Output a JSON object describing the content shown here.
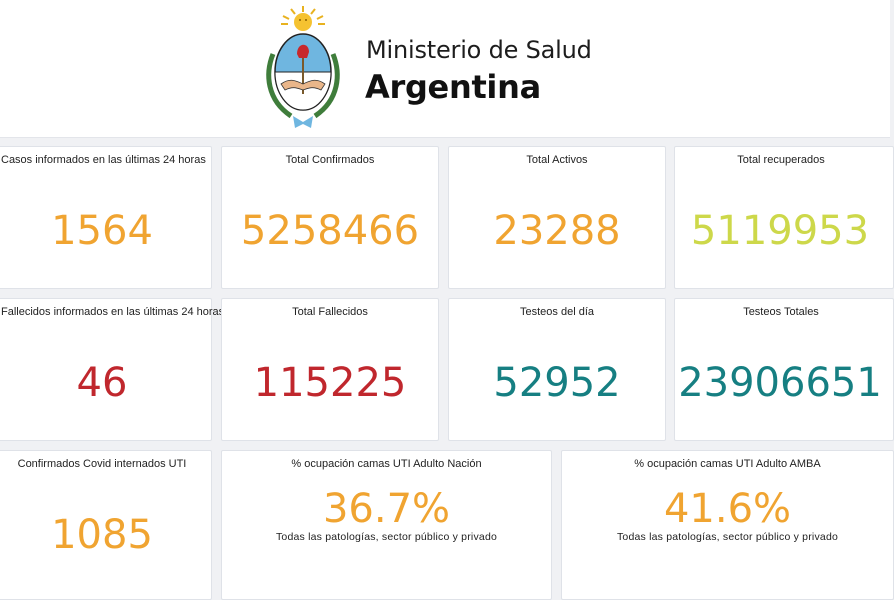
{
  "header": {
    "ministry": "Ministerio de Salud",
    "country": "Argentina",
    "emblem_icon": "argentina-coat-of-arms-icon"
  },
  "colors": {
    "orange": "#f0a431",
    "green": "#cdd84a",
    "red": "#c0272d",
    "teal": "#167f82"
  },
  "cards": [
    {
      "title": "Casos informados en las últimas 24 horas",
      "value": "1564"
    },
    {
      "title": "Total Confirmados",
      "value": "5258466"
    },
    {
      "title": "Total Activos",
      "value": "23288"
    },
    {
      "title": "Total recuperados",
      "value": "5119953"
    },
    {
      "title": "Fallecidos informados en las últimas 24 horas",
      "value": "46"
    },
    {
      "title": "Total Fallecidos",
      "value": "115225"
    },
    {
      "title": "Testeos del día",
      "value": "52952"
    },
    {
      "title": "Testeos Totales",
      "value": "23906651"
    },
    {
      "title": "Confirmados Covid internados UTI",
      "value": "1085"
    }
  ],
  "occupancy": [
    {
      "title": "% ocupación camas UTI Adulto Nación",
      "value": "36.7%",
      "subtitle": "Todas las patologías, sector público y privado"
    },
    {
      "title": "% ocupación camas UTI Adulto AMBA",
      "value": "41.6%",
      "subtitle": "Todas las patologías, sector público y privado"
    }
  ]
}
